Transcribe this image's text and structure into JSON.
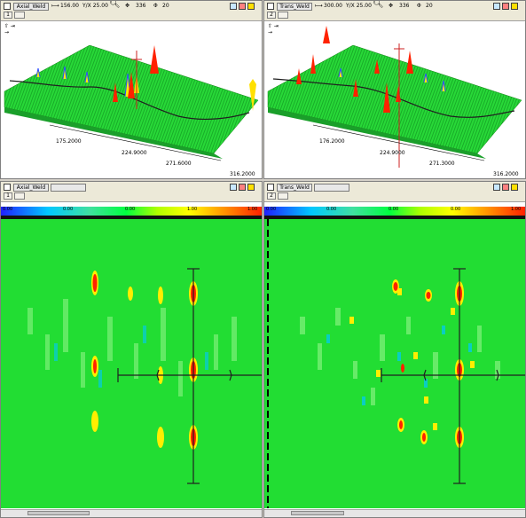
{
  "top_left": {
    "name": "Axial_Weld",
    "len_value": "156.00",
    "ratio": "Y/X 25.00",
    "rot": "336",
    "tilt": "20",
    "num": "1",
    "ticks": [
      "175.2000",
      "224.9000",
      "271.6000",
      "316.2000"
    ]
  },
  "top_right": {
    "name": "Trans_Weld",
    "len_value": "300.00",
    "ratio": "Y/X 25.00",
    "rot": "336",
    "tilt": "20",
    "num": "2",
    "ticks": [
      "176.2000",
      "224.9000",
      "271.3000",
      "316.2000"
    ]
  },
  "bottom_left": {
    "name": "Axial_Weld",
    "num": "1",
    "scale": [
      "0.00",
      "0.00",
      "0.00",
      "1.00",
      "1.00"
    ]
  },
  "bottom_right": {
    "name": "Trans_Weld",
    "num": "2",
    "scale": [
      "0.00",
      "0.00",
      "0.00",
      "0.00",
      "1.00"
    ]
  },
  "colors": {
    "field": "#22dd33",
    "peak": "#ff2200",
    "cursor": "#202020"
  },
  "icons": [
    "window-icon",
    "ruler-icon",
    "zoom-icon",
    "rotate-icon",
    "tilt-icon",
    "color-icon",
    "print-icon"
  ]
}
